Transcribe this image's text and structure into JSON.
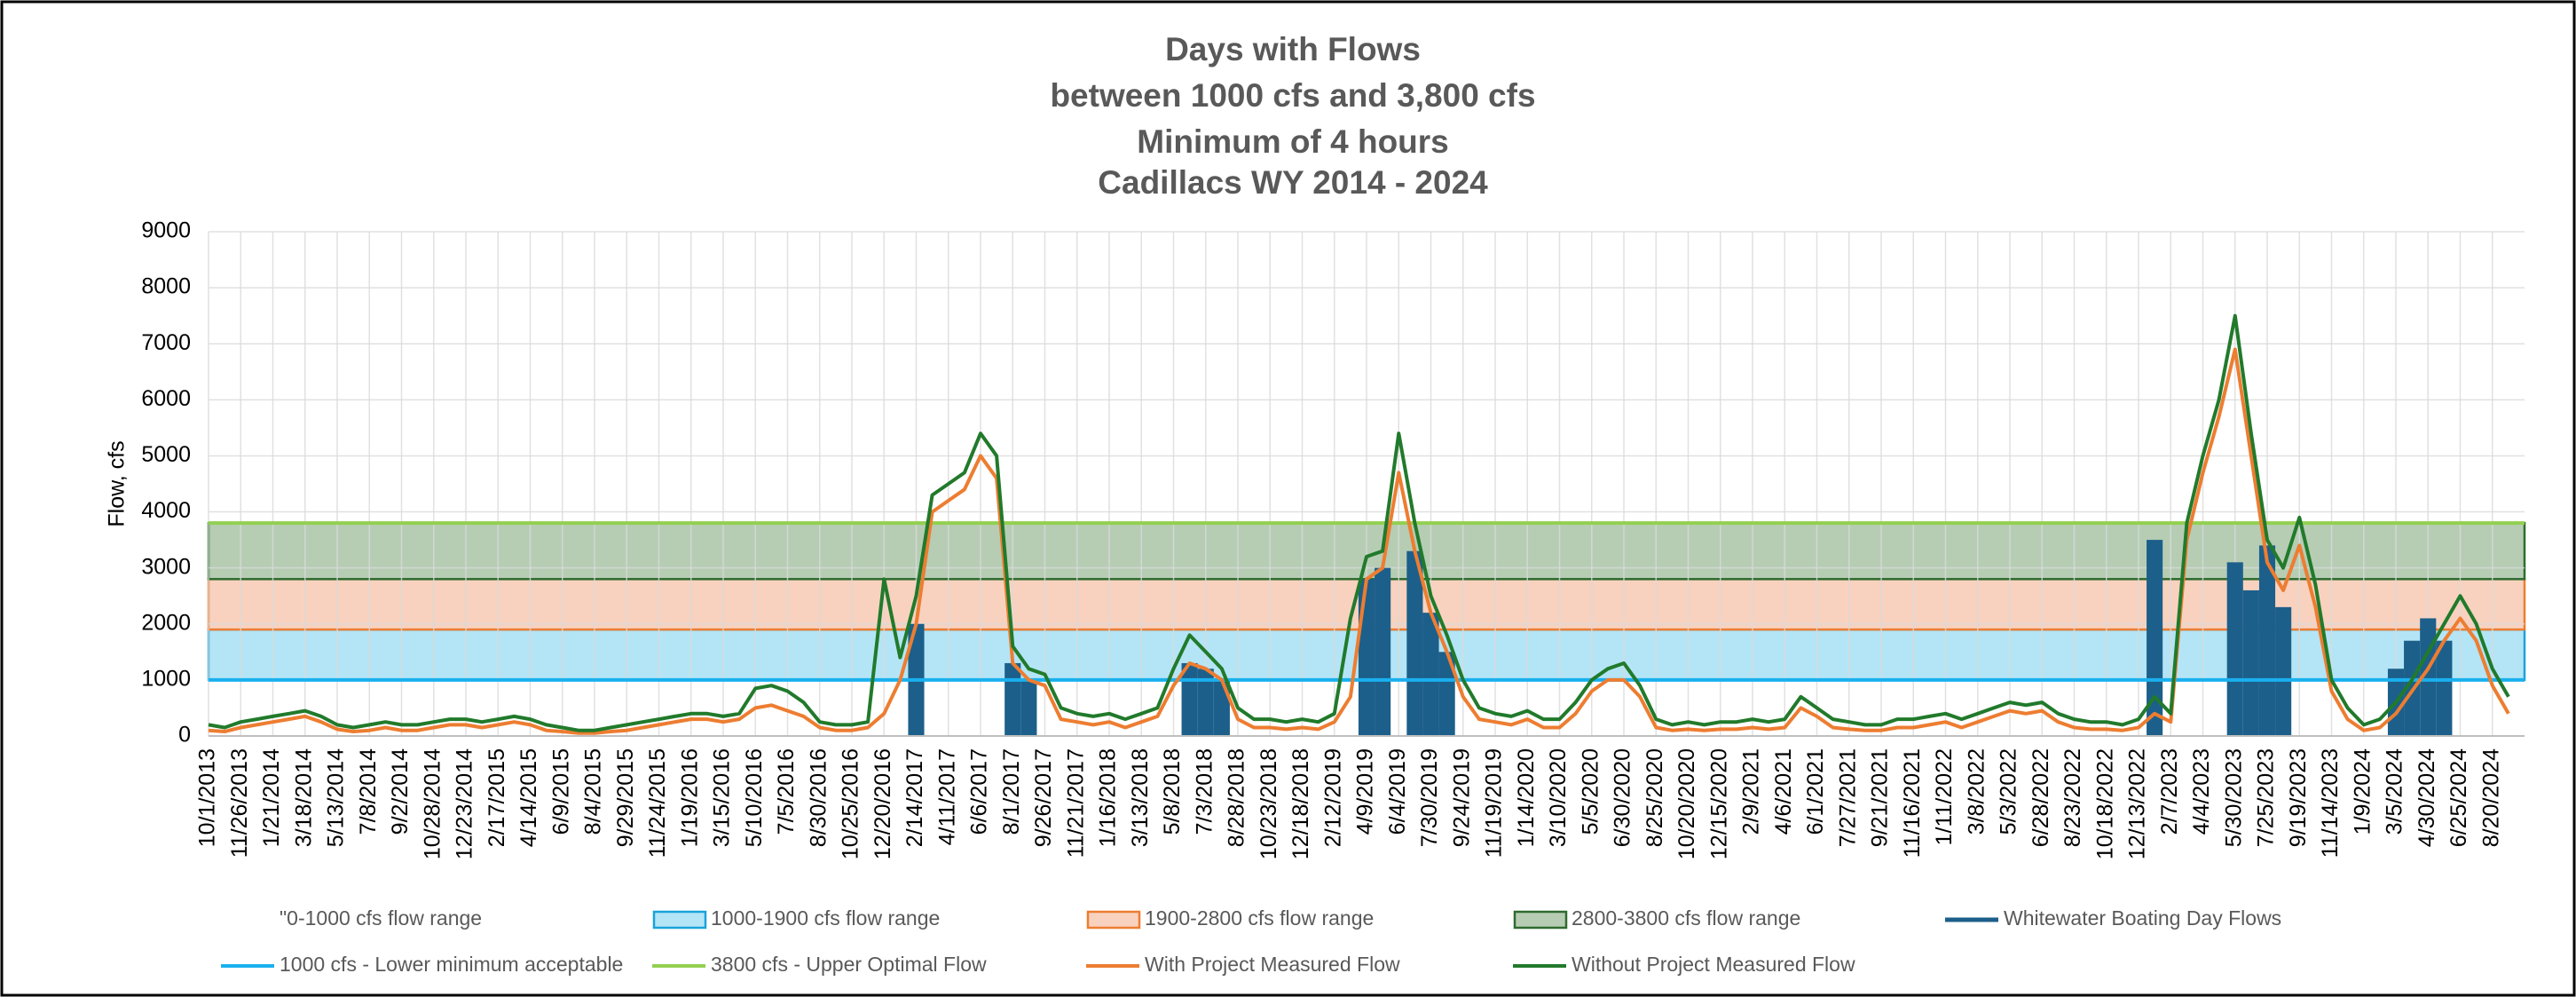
{
  "chart_data": {
    "type": "line",
    "title_lines": [
      "Days with Flows",
      "between 1000 cfs and 3,800 cfs",
      "Minimum of 4 hours",
      "Cadillacs WY 2014 - 2024"
    ],
    "y_label": "Flow, cfs",
    "ylim": [
      0,
      9000
    ],
    "yticks": [
      0,
      1000,
      2000,
      3000,
      4000,
      5000,
      6000,
      7000,
      8000,
      9000
    ],
    "grid": true,
    "legend": "bottom",
    "categories": [
      "10/1/2013",
      null,
      "11/26/2013",
      null,
      "1/21/2014",
      null,
      "3/18/2014",
      null,
      "5/13/2014",
      null,
      "7/8/2014",
      null,
      "9/2/2014",
      null,
      "10/28/2014",
      null,
      "12/23/2014",
      null,
      "2/17/2015",
      null,
      "4/14/2015",
      null,
      "6/9/2015",
      null,
      "8/4/2015",
      null,
      "9/29/2015",
      null,
      "11/24/2015",
      null,
      "1/19/2016",
      null,
      "3/15/2016",
      null,
      "5/10/2016",
      null,
      "7/5/2016",
      null,
      "8/30/2016",
      null,
      "10/25/2016",
      null,
      "12/20/2016",
      null,
      "2/14/2017",
      null,
      "4/11/2017",
      null,
      "6/6/2017",
      null,
      "8/1/2017",
      null,
      "9/26/2017",
      null,
      "11/21/2017",
      null,
      "1/16/2018",
      null,
      "3/13/2018",
      null,
      "5/8/2018",
      null,
      "7/3/2018",
      null,
      "8/28/2018",
      null,
      "10/23/2018",
      null,
      "12/18/2018",
      null,
      "2/12/2019",
      null,
      "4/9/2019",
      null,
      "6/4/2019",
      null,
      "7/30/2019",
      null,
      "9/24/2019",
      null,
      "11/19/2019",
      null,
      "1/14/2020",
      null,
      "3/10/2020",
      null,
      "5/5/2020",
      null,
      "6/30/2020",
      null,
      "8/25/2020",
      null,
      "10/20/2020",
      null,
      "12/15/2020",
      null,
      "2/9/2021",
      null,
      "4/6/2021",
      null,
      "6/1/2021",
      null,
      "7/27/2021",
      null,
      "9/21/2021",
      null,
      "11/16/2021",
      null,
      "1/11/2022",
      null,
      "3/8/2022",
      null,
      "5/3/2022",
      null,
      "6/28/2022",
      null,
      "8/23/2022",
      null,
      "10/18/2022",
      null,
      "12/13/2022",
      null,
      "2/7/2023",
      null,
      "4/4/2023",
      null,
      "5/30/2023",
      null,
      "7/25/2023",
      null,
      "9/19/2023",
      null,
      "11/14/2023",
      null,
      "1/9/2024",
      null,
      "3/5/2024",
      null,
      "4/30/2024",
      null,
      "6/25/2024",
      null,
      "8/20/2024",
      null
    ],
    "bands": [
      {
        "name": "\"0-1000 cfs flow range",
        "from": 0,
        "to": 1000,
        "color": "#ffffff",
        "edge": "#ffffff"
      },
      {
        "name": "1000-1900 cfs flow range",
        "from": 1000,
        "to": 1900,
        "color": "#b4e5f6",
        "edge": "#1aa3d9"
      },
      {
        "name": "1900-2800 cfs flow range",
        "from": 1900,
        "to": 2800,
        "color": "#f8d2bf",
        "edge": "#ed7d31"
      },
      {
        "name": "2800-3800 cfs flow range",
        "from": 2800,
        "to": 3800,
        "color": "#b6cdb4",
        "edge": "#2e6b2f"
      }
    ],
    "bars": {
      "name": "Whitewater Boating Day Flows",
      "color": "#1c5f8a",
      "values": [
        null,
        null,
        null,
        null,
        null,
        null,
        null,
        null,
        null,
        null,
        null,
        null,
        null,
        null,
        null,
        null,
        null,
        null,
        null,
        null,
        null,
        null,
        null,
        null,
        null,
        null,
        null,
        null,
        null,
        null,
        null,
        null,
        null,
        null,
        null,
        null,
        null,
        null,
        null,
        null,
        null,
        null,
        null,
        null,
        2000,
        null,
        null,
        null,
        null,
        null,
        1300,
        1000,
        null,
        null,
        null,
        null,
        null,
        null,
        null,
        null,
        null,
        1300,
        1200,
        1000,
        null,
        null,
        null,
        null,
        null,
        null,
        null,
        null,
        2800,
        3000,
        null,
        3300,
        2200,
        1500,
        null,
        null,
        null,
        null,
        null,
        null,
        null,
        null,
        null,
        null,
        null,
        null,
        null,
        null,
        null,
        null,
        null,
        null,
        null,
        null,
        null,
        null,
        null,
        null,
        null,
        null,
        null,
        null,
        null,
        null,
        null,
        null,
        null,
        null,
        null,
        null,
        null,
        null,
        null,
        null,
        null,
        null,
        null,
        3500,
        null,
        null,
        null,
        null,
        3100,
        2600,
        3400,
        2300,
        null,
        null,
        null,
        null,
        null,
        null,
        1200,
        1700,
        2100,
        1700,
        null,
        null
      ]
    },
    "ref_lines": [
      {
        "name": "1000 cfs - Lower minimum acceptable",
        "value": 1000,
        "color": "#1ab0ef"
      },
      {
        "name": "3800 cfs - Upper Optimal Flow",
        "value": 3800,
        "color": "#92d050"
      }
    ],
    "series": [
      {
        "name": "With Project Measured Flow",
        "color": "#ed7d31",
        "values": [
          100,
          80,
          150,
          200,
          250,
          300,
          350,
          250,
          120,
          80,
          100,
          150,
          100,
          100,
          150,
          200,
          200,
          150,
          200,
          250,
          200,
          100,
          80,
          50,
          50,
          80,
          100,
          150,
          200,
          250,
          300,
          300,
          250,
          300,
          500,
          550,
          450,
          350,
          150,
          100,
          100,
          150,
          400,
          1000,
          2000,
          4000,
          4200,
          4400,
          5000,
          4600,
          1300,
          1000,
          900,
          300,
          250,
          200,
          250,
          150,
          250,
          350,
          900,
          1300,
          1200,
          1000,
          300,
          150,
          150,
          120,
          150,
          120,
          250,
          700,
          2800,
          3000,
          4700,
          3300,
          2200,
          1500,
          700,
          300,
          250,
          200,
          300,
          150,
          150,
          400,
          800,
          1000,
          1000,
          700,
          150,
          100,
          120,
          100,
          120,
          120,
          150,
          120,
          150,
          500,
          350,
          150,
          120,
          100,
          100,
          150,
          150,
          200,
          250,
          150,
          250,
          350,
          450,
          400,
          450,
          250,
          150,
          120,
          120,
          100,
          150,
          400,
          250,
          3500,
          4700,
          5700,
          6900,
          5000,
          3100,
          2600,
          3400,
          2300,
          800,
          300,
          100,
          150,
          400,
          800,
          1200,
          1700,
          2100,
          1700,
          900,
          400
        ]
      },
      {
        "name": "Without Project Measured Flow",
        "color": "#217a2b",
        "values": [
          200,
          150,
          250,
          300,
          350,
          400,
          450,
          350,
          200,
          150,
          200,
          250,
          200,
          200,
          250,
          300,
          300,
          250,
          300,
          350,
          300,
          200,
          150,
          100,
          100,
          150,
          200,
          250,
          300,
          350,
          400,
          400,
          350,
          400,
          850,
          900,
          800,
          600,
          250,
          200,
          200,
          250,
          2800,
          1400,
          2500,
          4300,
          4500,
          4700,
          5400,
          5000,
          1600,
          1200,
          1100,
          500,
          400,
          350,
          400,
          300,
          400,
          500,
          1200,
          1800,
          1500,
          1200,
          500,
          300,
          300,
          250,
          300,
          250,
          400,
          2100,
          3200,
          3300,
          5400,
          3800,
          2500,
          1800,
          1000,
          500,
          400,
          350,
          450,
          300,
          300,
          600,
          1000,
          1200,
          1300,
          900,
          300,
          200,
          250,
          200,
          250,
          250,
          300,
          250,
          300,
          700,
          500,
          300,
          250,
          200,
          200,
          300,
          300,
          350,
          400,
          300,
          400,
          500,
          600,
          550,
          600,
          400,
          300,
          250,
          250,
          200,
          300,
          700,
          400,
          3800,
          5000,
          6000,
          7500,
          5400,
          3500,
          3000,
          3900,
          2700,
          1000,
          500,
          200,
          300,
          600,
          1000,
          1500,
          2000,
          2500,
          2000,
          1200,
          700
        ]
      }
    ]
  }
}
